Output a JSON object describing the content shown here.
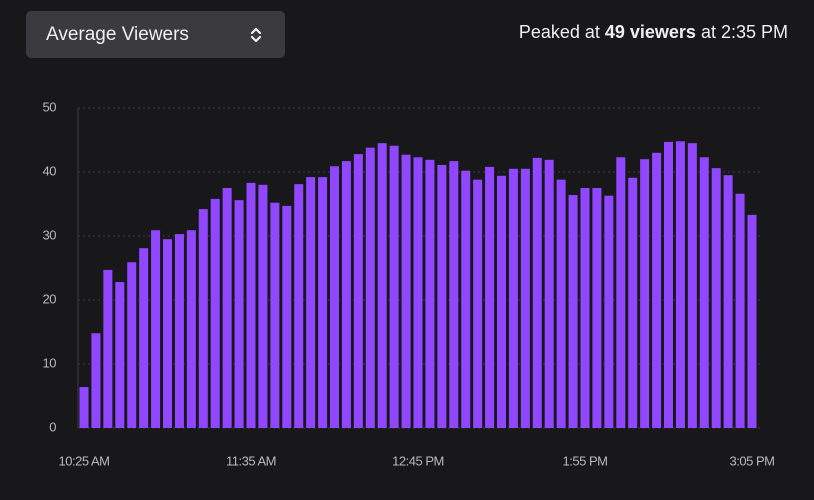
{
  "dropdown": {
    "label": "Average Viewers"
  },
  "peak": {
    "prefix": "Peaked at",
    "highlight": "49 viewers",
    "suffix": "at 2:35 PM"
  },
  "chart_data": {
    "type": "bar",
    "categories": [
      "10:25 AM",
      null,
      null,
      null,
      null,
      null,
      null,
      null,
      null,
      null,
      null,
      null,
      null,
      null,
      "11:35 AM",
      null,
      null,
      null,
      null,
      null,
      null,
      null,
      null,
      null,
      null,
      null,
      null,
      null,
      "12:45 PM",
      null,
      null,
      null,
      null,
      null,
      null,
      null,
      null,
      null,
      null,
      null,
      null,
      null,
      "1:55 PM",
      null,
      null,
      null,
      null,
      null,
      null,
      null,
      null,
      null,
      null,
      null,
      null,
      null,
      "3:05 PM"
    ],
    "values": [
      6.4,
      14.8,
      24.7,
      22.8,
      25.9,
      28.1,
      30.9,
      29.5,
      30.3,
      30.9,
      34.2,
      35.8,
      37.5,
      35.6,
      38.3,
      38.0,
      35.2,
      34.7,
      38.1,
      39.2,
      39.2,
      40.9,
      41.7,
      42.8,
      43.8,
      44.5,
      44.1,
      42.7,
      42.3,
      41.9,
      41.1,
      41.7,
      40.2,
      38.8,
      40.8,
      39.4,
      40.5,
      40.5,
      42.2,
      41.9,
      38.8,
      36.4,
      37.5,
      37.5,
      36.3,
      42.3,
      39.1,
      42.0,
      43.0,
      44.7,
      44.8,
      44.5,
      42.3,
      40.6,
      39.5,
      36.6,
      33.3
    ],
    "color": "#9147ff",
    "ylim": [
      0,
      50
    ],
    "yticks": [
      0,
      10,
      20,
      30,
      40,
      50
    ],
    "grid": true
  }
}
